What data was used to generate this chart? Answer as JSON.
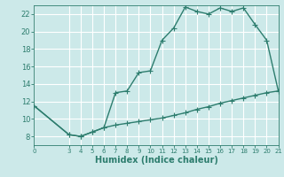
{
  "xlabel": "Humidex (Indice chaleur)",
  "ylabel": "",
  "background_color": "#cce9e9",
  "line_color": "#2d7d6e",
  "grid_color": "#ffffff",
  "xlim": [
    0,
    21
  ],
  "ylim": [
    7,
    23
  ],
  "xticks": [
    0,
    3,
    4,
    5,
    6,
    7,
    8,
    9,
    10,
    11,
    12,
    13,
    14,
    15,
    16,
    17,
    18,
    19,
    20,
    21
  ],
  "yticks": [
    8,
    10,
    12,
    14,
    16,
    18,
    20,
    22
  ],
  "curve1_x": [
    0,
    3,
    4,
    5,
    6,
    7,
    8,
    9,
    10,
    11,
    12,
    13,
    14,
    15,
    16,
    17,
    18,
    19,
    20,
    21
  ],
  "curve1_y": [
    11.5,
    8.2,
    8.0,
    8.5,
    9.0,
    13.0,
    13.2,
    15.3,
    15.5,
    19.0,
    20.4,
    22.8,
    22.3,
    22.0,
    22.7,
    22.3,
    22.7,
    20.8,
    19.0,
    13.2
  ],
  "curve2_x": [
    0,
    3,
    4,
    5,
    6,
    7,
    8,
    9,
    10,
    11,
    12,
    13,
    14,
    15,
    16,
    17,
    18,
    19,
    20,
    21
  ],
  "curve2_y": [
    11.5,
    8.2,
    8.0,
    8.5,
    9.0,
    9.3,
    9.5,
    9.7,
    9.9,
    10.1,
    10.4,
    10.7,
    11.1,
    11.4,
    11.8,
    12.1,
    12.4,
    12.7,
    13.0,
    13.2
  ],
  "marker": "+",
  "markersize": 4,
  "linewidth": 1.0,
  "tick_fontsize": 6,
  "xlabel_fontsize": 7
}
